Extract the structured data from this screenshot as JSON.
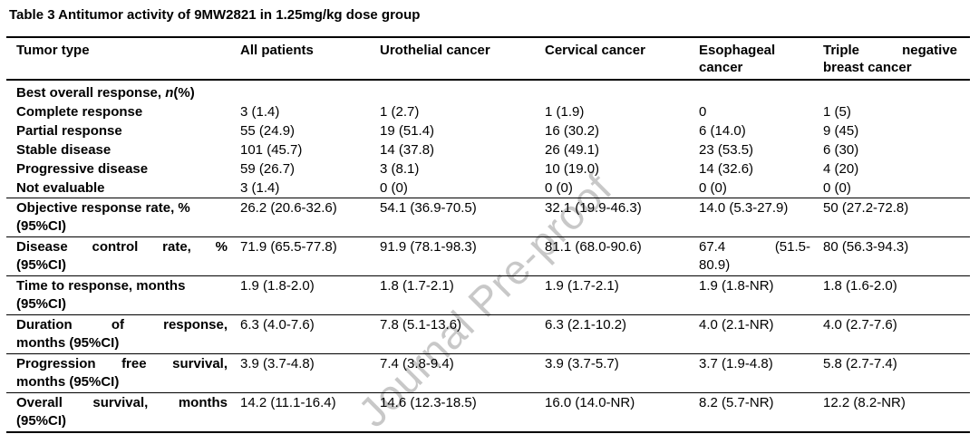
{
  "title": "Table 3 Antitumor activity of 9MW2821 in 1.25mg/kg dose group",
  "watermark": "Journal Pre-proof",
  "table": {
    "columns": [
      {
        "lines": [
          "Tumor type"
        ]
      },
      {
        "lines": [
          "All patients"
        ]
      },
      {
        "lines": [
          "Urothelial cancer"
        ]
      },
      {
        "lines": [
          "Cervical cancer"
        ]
      },
      {
        "lines": [
          "Esophageal",
          "cancer"
        ]
      },
      {
        "lines": [
          "Triple negative",
          "breast cancer"
        ],
        "justify_first": true
      }
    ],
    "rows": [
      {
        "kind": "section",
        "segments": [
          {
            "text": "Best overall response, "
          },
          {
            "text": "n",
            "italic": true
          },
          {
            "text": "(%)"
          }
        ]
      },
      {
        "kind": "plain",
        "label": {
          "lines": [
            "Complete response"
          ]
        },
        "values": [
          {
            "lines": [
              "3 (1.4)"
            ]
          },
          {
            "lines": [
              "1 (2.7)"
            ]
          },
          {
            "lines": [
              "1 (1.9)"
            ]
          },
          {
            "lines": [
              "0"
            ]
          },
          {
            "lines": [
              "1 (5)"
            ]
          }
        ]
      },
      {
        "kind": "plain",
        "label": {
          "lines": [
            "Partial response"
          ]
        },
        "values": [
          {
            "lines": [
              "55 (24.9)"
            ]
          },
          {
            "lines": [
              "19 (51.4)"
            ]
          },
          {
            "lines": [
              "16 (30.2)"
            ]
          },
          {
            "lines": [
              "6 (14.0)"
            ]
          },
          {
            "lines": [
              "9 (45)"
            ]
          }
        ]
      },
      {
        "kind": "plain",
        "label": {
          "lines": [
            "Stable disease"
          ]
        },
        "values": [
          {
            "lines": [
              "101 (45.7)"
            ]
          },
          {
            "lines": [
              "14 (37.8)"
            ]
          },
          {
            "lines": [
              "26 (49.1)"
            ]
          },
          {
            "lines": [
              "23 (53.5)"
            ]
          },
          {
            "lines": [
              "6 (30)"
            ]
          }
        ]
      },
      {
        "kind": "plain",
        "label": {
          "lines": [
            "Progressive disease"
          ]
        },
        "values": [
          {
            "lines": [
              "59 (26.7)"
            ]
          },
          {
            "lines": [
              "3 (8.1)"
            ]
          },
          {
            "lines": [
              "10 (19.0)"
            ]
          },
          {
            "lines": [
              "14 (32.6)"
            ]
          },
          {
            "lines": [
              "4 (20)"
            ]
          }
        ]
      },
      {
        "kind": "plain",
        "label": {
          "lines": [
            "Not evaluable"
          ]
        },
        "values": [
          {
            "lines": [
              "3 (1.4)"
            ]
          },
          {
            "lines": [
              "0 (0)"
            ]
          },
          {
            "lines": [
              "0 (0)"
            ]
          },
          {
            "lines": [
              "0 (0)"
            ]
          },
          {
            "lines": [
              "0 (0)"
            ]
          }
        ]
      },
      {
        "kind": "ruled",
        "label": {
          "lines": [
            "Objective response rate, %",
            "(95%CI)"
          ]
        },
        "values": [
          {
            "lines": [
              "26.2 (20.6-32.6)"
            ]
          },
          {
            "lines": [
              "54.1 (36.9-70.5)"
            ]
          },
          {
            "lines": [
              "32.1 (19.9-46.3)"
            ]
          },
          {
            "lines": [
              "14.0 (5.3-27.9)"
            ]
          },
          {
            "lines": [
              "50 (27.2-72.8)"
            ]
          }
        ]
      },
      {
        "kind": "ruled",
        "label": {
          "lines": [
            "Disease control rate, %",
            "(95%CI)"
          ],
          "justify_first": true
        },
        "values": [
          {
            "lines": [
              "71.9 (65.5-77.8)"
            ]
          },
          {
            "lines": [
              "91.9 (78.1-98.3)"
            ]
          },
          {
            "lines": [
              "81.1 (68.0-90.6)"
            ]
          },
          {
            "lines": [
              "67.4 (51.5-",
              "80.9)"
            ],
            "justify_first": true
          },
          {
            "lines": [
              "80 (56.3-94.3)"
            ]
          }
        ]
      },
      {
        "kind": "ruled",
        "label": {
          "lines": [
            "Time to response, months",
            "(95%CI)"
          ]
        },
        "values": [
          {
            "lines": [
              "1.9 (1.8-2.0)"
            ]
          },
          {
            "lines": [
              "1.8 (1.7-2.1)"
            ]
          },
          {
            "lines": [
              "1.9 (1.7-2.1)"
            ]
          },
          {
            "lines": [
              "1.9 (1.8-NR)"
            ]
          },
          {
            "lines": [
              "1.8 (1.6-2.0)"
            ]
          }
        ]
      },
      {
        "kind": "ruled",
        "label": {
          "lines": [
            "Duration of response,",
            "months (95%CI)"
          ],
          "justify_first": true
        },
        "values": [
          {
            "lines": [
              "6.3 (4.0-7.6)"
            ]
          },
          {
            "lines": [
              "7.8 (5.1-13.6)"
            ]
          },
          {
            "lines": [
              "6.3 (2.1-10.2)"
            ]
          },
          {
            "lines": [
              "4.0 (2.1-NR)"
            ]
          },
          {
            "lines": [
              "4.0 (2.7-7.6)"
            ]
          }
        ]
      },
      {
        "kind": "ruled",
        "label": {
          "lines": [
            "Progression free survival,",
            "months (95%CI)"
          ],
          "justify_first": true
        },
        "values": [
          {
            "lines": [
              "3.9 (3.7-4.8)"
            ]
          },
          {
            "lines": [
              "7.4 (3.8-9.4)"
            ]
          },
          {
            "lines": [
              "3.9 (3.7-5.7)"
            ]
          },
          {
            "lines": [
              "3.7 (1.9-4.8)"
            ]
          },
          {
            "lines": [
              "5.8 (2.7-7.4)"
            ]
          }
        ]
      },
      {
        "kind": "ruled",
        "label": {
          "lines": [
            "Overall survival, months",
            "(95%CI)"
          ],
          "justify_first": true
        },
        "values": [
          {
            "lines": [
              "14.2 (11.1-16.4)"
            ]
          },
          {
            "lines": [
              "14.6 (12.3-18.5)"
            ]
          },
          {
            "lines": [
              "16.0 (14.0-NR)"
            ]
          },
          {
            "lines": [
              "8.2 (5.7-NR)"
            ]
          },
          {
            "lines": [
              "12.2 (8.2-NR)"
            ]
          }
        ]
      }
    ]
  }
}
